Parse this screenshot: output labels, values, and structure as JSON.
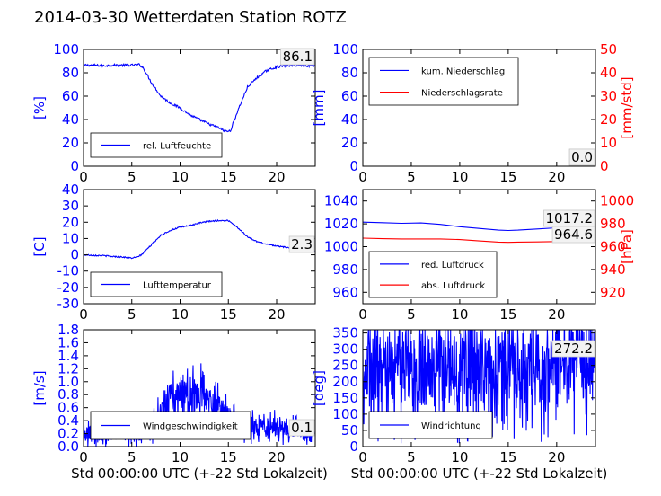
{
  "page_title": "2014-03-30 Wetterdaten Station ROTZ",
  "colors": {
    "left_axis": "#0000ff",
    "right_axis": "#ff0000",
    "frame": "#000000"
  },
  "chart_data": [
    {
      "type": "line",
      "id": "humidity",
      "xlim": [
        0,
        24
      ],
      "ylim": [
        0,
        100
      ],
      "xticks": [
        0,
        5,
        10,
        15,
        20
      ],
      "yticks": [
        0,
        20,
        40,
        60,
        80,
        100
      ],
      "ylabel": "[%]",
      "legend": {
        "position": "lower-left",
        "entries": [
          "rel. Luftfeuchte"
        ]
      },
      "current_value": "86.1",
      "series": [
        {
          "name": "rel. Luftfeuchte",
          "color": "#0000ff",
          "noise": 1.0,
          "x": [
            0,
            1,
            2,
            3,
            4,
            5,
            5.8,
            6.2,
            7,
            8,
            9,
            10,
            11,
            12,
            13,
            14,
            14.6,
            15.2,
            16,
            17,
            18,
            19,
            20,
            21,
            22,
            23,
            24
          ],
          "y": [
            86.5,
            86.5,
            86,
            86.5,
            86.5,
            86.5,
            87,
            84,
            72,
            60,
            54,
            50,
            44,
            40,
            36,
            33,
            30,
            30,
            48,
            68,
            76,
            82,
            85,
            86,
            86.5,
            86.1,
            86.1
          ]
        }
      ]
    },
    {
      "type": "line",
      "id": "precipitation",
      "xlim": [
        0,
        24
      ],
      "ylim": [
        0,
        100
      ],
      "y2lim": [
        0,
        50
      ],
      "xticks": [
        0,
        5,
        10,
        15,
        20
      ],
      "yticks": [
        0,
        20,
        40,
        60,
        80,
        100
      ],
      "y2ticks": [
        0,
        10,
        20,
        30,
        40,
        50
      ],
      "ylabel": "[mm]",
      "y2label": "[mm/std]",
      "legend": {
        "position": "upper-left",
        "entries": [
          "kum. Niederschlag",
          "Niederschlagsrate"
        ]
      },
      "current_values": [
        "0.0",
        "0.0"
      ],
      "series": [
        {
          "name": "kum. Niederschlag",
          "color": "#0000ff",
          "axis": "left",
          "x": [
            0,
            24
          ],
          "y": [
            0,
            0
          ]
        },
        {
          "name": "Niederschlagsrate",
          "color": "#ff0000",
          "axis": "right",
          "x": [
            0,
            24
          ],
          "y": [
            0,
            0
          ]
        }
      ]
    },
    {
      "type": "line",
      "id": "temperature",
      "xlim": [
        0,
        24
      ],
      "ylim": [
        -30,
        40
      ],
      "xticks": [
        0,
        5,
        10,
        15,
        20
      ],
      "yticks": [
        -30,
        -20,
        -10,
        0,
        10,
        20,
        30,
        40
      ],
      "ylabel": "[C]",
      "legend": {
        "position": "lower-left",
        "entries": [
          "Lufttemperatur"
        ]
      },
      "current_value": "2.3",
      "series": [
        {
          "name": "Lufttemperatur",
          "color": "#0000ff",
          "noise": 0.4,
          "x": [
            0,
            1,
            2,
            3,
            4,
            5,
            5.5,
            6,
            7,
            8,
            9,
            10,
            11,
            12,
            13,
            14,
            15,
            15.5,
            16,
            17,
            18,
            19,
            20,
            21,
            22,
            23,
            24
          ],
          "y": [
            0,
            -0.3,
            -0.5,
            -1,
            -1.3,
            -2,
            -1.5,
            0,
            6,
            12,
            15,
            17,
            18,
            19.5,
            20.5,
            21,
            21,
            19,
            16.5,
            11,
            8,
            6.5,
            5.5,
            4.5,
            3.5,
            2.5,
            2.3
          ]
        }
      ]
    },
    {
      "type": "line",
      "id": "pressure",
      "xlim": [
        0,
        24
      ],
      "ylim": [
        950,
        1050
      ],
      "y2lim": [
        910,
        1010
      ],
      "xticks": [
        0,
        5,
        10,
        15,
        20
      ],
      "yticks": [
        960,
        980,
        1000,
        1020,
        1040
      ],
      "y2ticks": [
        920,
        940,
        960,
        980,
        1000
      ],
      "y2label": "[hPa]",
      "legend": {
        "position": "lower-left",
        "entries": [
          "red. Luftdruck",
          "abs. Luftdruck"
        ]
      },
      "current_values": [
        "1017.2",
        "964.6"
      ],
      "series": [
        {
          "name": "red. Luftdruck",
          "color": "#0000ff",
          "axis": "left",
          "x": [
            0,
            2,
            4,
            6,
            8,
            10,
            12,
            14,
            15,
            16,
            18,
            20,
            22,
            24
          ],
          "y": [
            1021.5,
            1021,
            1020.5,
            1020.8,
            1019.5,
            1017.5,
            1016,
            1014.5,
            1014.2,
            1014.5,
            1015.5,
            1016.5,
            1017,
            1017.2
          ]
        },
        {
          "name": "abs. Luftdruck",
          "color": "#ff0000",
          "axis": "right",
          "x": [
            0,
            2,
            4,
            6,
            8,
            10,
            12,
            14,
            15,
            16,
            18,
            20,
            22,
            24
          ],
          "y": [
            967.5,
            967,
            966.8,
            966.8,
            966.8,
            966.2,
            965,
            964,
            963.8,
            964,
            964.2,
            964.5,
            964.6,
            964.6
          ]
        }
      ]
    },
    {
      "type": "line",
      "id": "wind-speed",
      "xlim": [
        0,
        24
      ],
      "ylim": [
        0,
        1.8
      ],
      "xticks": [
        0,
        5,
        10,
        15,
        20
      ],
      "yticks": [
        0,
        0.2,
        0.4,
        0.6,
        0.8,
        1.0,
        1.2,
        1.4,
        1.6,
        1.8
      ],
      "ylabel": "[m/s]",
      "xlabel": "Std 00:00:00 UTC (+-22 Std Lokalzeit)",
      "legend": {
        "position": "lower-left",
        "entries": [
          "Windgeschwindigkeit"
        ]
      },
      "current_value": "0.1",
      "series": [
        {
          "name": "Windgeschwindigkeit",
          "color": "#0000ff",
          "noise": 0.3,
          "spiky": true,
          "x": [
            0,
            2,
            4,
            6,
            7,
            8,
            9,
            10,
            11,
            12,
            13,
            14,
            15,
            16,
            17,
            18,
            19,
            20,
            21,
            22,
            23,
            24
          ],
          "y": [
            0.2,
            0.2,
            0.25,
            0.2,
            0.3,
            0.5,
            0.75,
            0.8,
            0.8,
            0.85,
            0.65,
            0.6,
            0.45,
            0.35,
            0.3,
            0.3,
            0.3,
            0.3,
            0.3,
            0.25,
            0.2,
            0.15
          ]
        }
      ]
    },
    {
      "type": "line",
      "id": "wind-direction",
      "xlim": [
        0,
        24
      ],
      "ylim": [
        0,
        360
      ],
      "xticks": [
        0,
        5,
        10,
        15,
        20
      ],
      "yticks": [
        0,
        50,
        100,
        150,
        200,
        250,
        300,
        350
      ],
      "ylabel": "[deg]",
      "xlabel": "Std 00:00:00 UTC (+-22 Std Lokalzeit)",
      "legend": {
        "position": "lower-left",
        "entries": [
          "Windrichtung"
        ]
      },
      "current_value": "272.2",
      "series": [
        {
          "name": "Windrichtung",
          "color": "#0000ff",
          "noise": 110,
          "spiky": true,
          "x": [
            0,
            4,
            8,
            12,
            16,
            20,
            24
          ],
          "y": [
            250,
            240,
            230,
            240,
            240,
            250,
            250
          ]
        }
      ]
    }
  ]
}
